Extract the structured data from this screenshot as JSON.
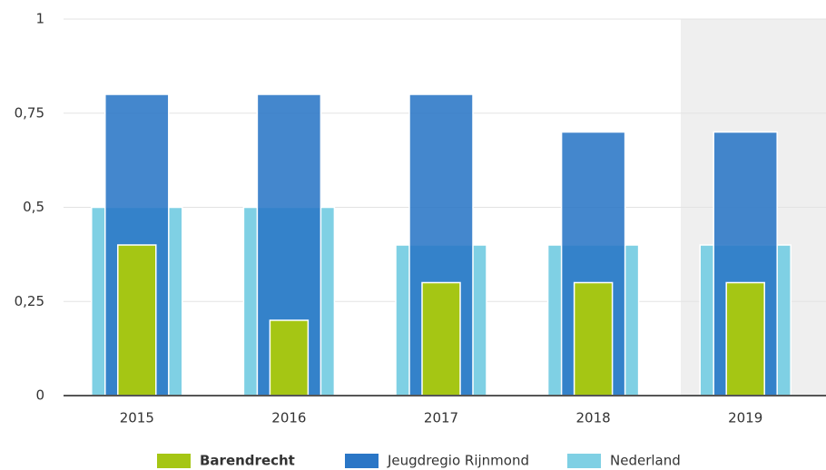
{
  "chart_data": {
    "type": "bar",
    "categories": [
      "2015",
      "2016",
      "2017",
      "2018",
      "2019"
    ],
    "series": [
      {
        "name": "Barendrecht",
        "color": "#a5c614",
        "values": [
          0.4,
          0.2,
          0.3,
          0.3,
          0.3
        ]
      },
      {
        "name": "Jeugdregio Rijnmond",
        "color": "#2a76c6",
        "values": [
          0.8,
          0.8,
          0.8,
          0.7,
          0.7
        ]
      },
      {
        "name": "Nederland",
        "color": "#7fd0e4",
        "values": [
          0.5,
          0.5,
          0.4,
          0.4,
          0.4
        ]
      }
    ],
    "ylim": [
      0,
      1
    ],
    "yticks": [
      0,
      {
        "value": 0.25,
        "label": "0,25"
      },
      {
        "value": 0.5,
        "label": "0,5"
      },
      {
        "value": 0.75,
        "label": "0,75"
      },
      1
    ],
    "grid": true,
    "legend": "bottom"
  }
}
